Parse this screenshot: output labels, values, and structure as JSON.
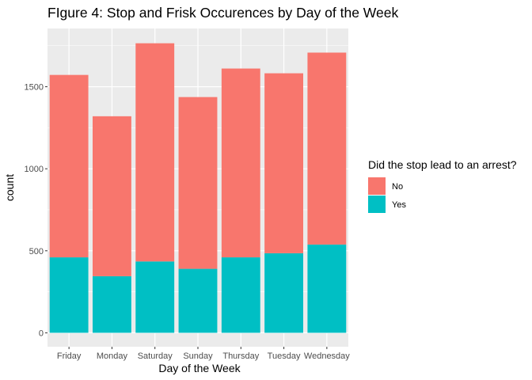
{
  "chart_data": {
    "type": "bar",
    "stacked": true,
    "title": "FIgure 4: Stop and Frisk Occurences by Day of the Week",
    "xlabel": "Day of the Week",
    "ylabel": "count",
    "categories": [
      "Friday",
      "Monday",
      "Saturday",
      "Sunday",
      "Thursday",
      "Tuesday",
      "Wednesday"
    ],
    "series": [
      {
        "name": "Yes",
        "color": "#00BFC4",
        "values": [
          460,
          345,
          435,
          390,
          460,
          485,
          538
        ]
      },
      {
        "name": "No",
        "color": "#F8766D",
        "values": [
          1112,
          975,
          1330,
          1047,
          1151,
          1097,
          1170
        ]
      }
    ],
    "yticks": [
      0,
      500,
      1000,
      1500
    ],
    "ylim": [
      -85,
      1855
    ],
    "grid": true,
    "legend": {
      "title": "Did the stop lead to an arrest?",
      "position": "right",
      "items": [
        {
          "label": "No",
          "color": "#F8766D"
        },
        {
          "label": "Yes",
          "color": "#00BFC4"
        }
      ]
    }
  }
}
